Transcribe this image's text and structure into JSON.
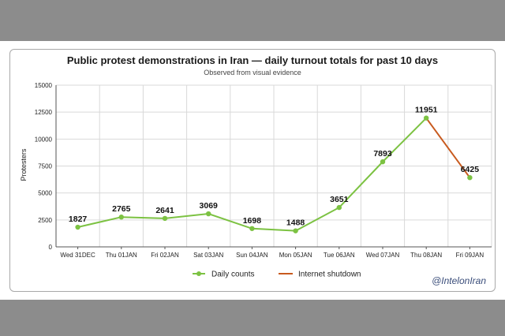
{
  "chart_data": {
    "type": "line",
    "title": "Public protest demonstrations in Iran — daily turnout totals for past 10 days",
    "subtitle": "Observed from visual evidence",
    "xlabel": "",
    "ylabel": "Protesters",
    "ylim": [
      0,
      15000
    ],
    "yticks": [
      "0",
      "2500",
      "5000",
      "7500",
      "10000",
      "12500",
      "15000"
    ],
    "ytick_values": [
      0,
      2500,
      5000,
      7500,
      10000,
      12500,
      15000
    ],
    "categories": [
      "Wed 31DEC",
      "Thu 01JAN",
      "Fri 02JAN",
      "Sat 03JAN",
      "Sun 04JAN",
      "Mon 05JAN",
      "Tue 06JAN",
      "Wed 07JAN",
      "Thu 08JAN",
      "Fri 09JAN"
    ],
    "series": [
      {
        "name": "Daily counts",
        "color": "#7cc242",
        "values": [
          1827,
          2765,
          2641,
          3069,
          1698,
          1488,
          3651,
          7893,
          11951,
          6425
        ]
      },
      {
        "name": "Internet shutdown",
        "color": "#c85a1e",
        "segment": [
          "Thu 08JAN",
          "Fri 09JAN"
        ]
      }
    ],
    "data_labels": [
      "1827",
      "2765",
      "2641",
      "3069",
      "1698",
      "1488",
      "3651",
      "7893",
      "11951",
      "6425"
    ],
    "grid": true,
    "legend_position": "bottom"
  },
  "watermark": "@IntelonIran"
}
